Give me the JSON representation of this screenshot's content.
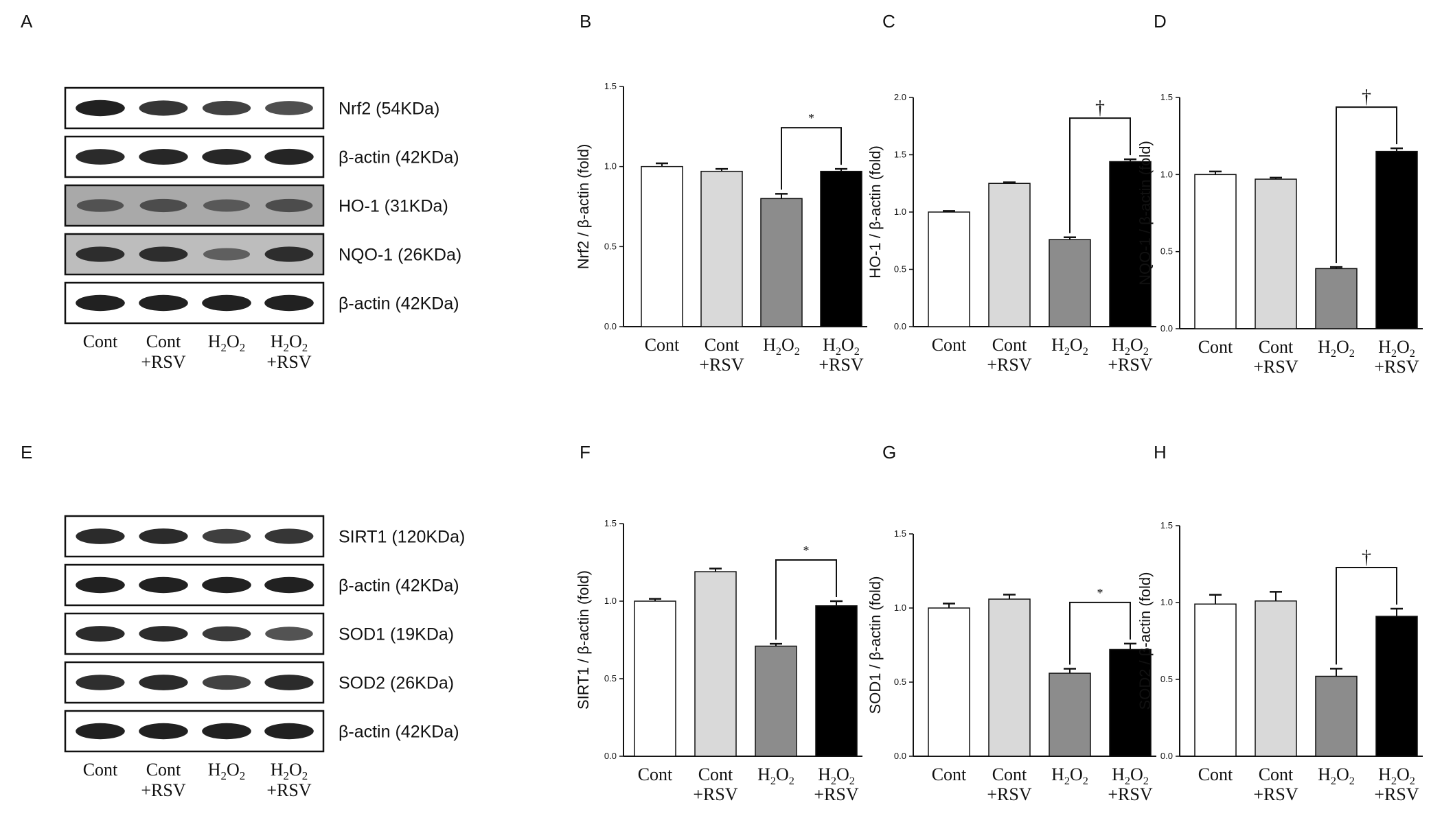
{
  "panels": {
    "A": "A",
    "B": "B",
    "C": "C",
    "D": "D",
    "E": "E",
    "F": "F",
    "G": "G",
    "H": "H"
  },
  "conditions": [
    {
      "main": "Cont",
      "line2": ""
    },
    {
      "main": "Cont",
      "line2": "+RSV"
    },
    {
      "main": "H",
      "sub": "2",
      "main2": "O",
      "sub2": "2",
      "line2": ""
    },
    {
      "main": "H",
      "sub": "2",
      "main2": "O",
      "sub2": "2",
      "line2": "+RSV"
    }
  ],
  "blots_top": [
    {
      "label": "Nrf2 (54KDa)",
      "intensity": [
        0.95,
        0.85,
        0.78,
        0.72
      ],
      "background": "#ffffff"
    },
    {
      "label": "β-actin (42KDa)",
      "intensity": [
        0.9,
        0.92,
        0.92,
        0.93
      ],
      "background": "#ffffff"
    },
    {
      "label": "HO-1 (31KDa)",
      "intensity": [
        0.55,
        0.6,
        0.5,
        0.6
      ],
      "background": "#a9a9a9"
    },
    {
      "label": "NQO-1 (26KDa)",
      "intensity": [
        0.85,
        0.85,
        0.5,
        0.85
      ],
      "background": "#bdbdbd"
    },
    {
      "label": "β-actin (42KDa)",
      "intensity": [
        0.95,
        0.95,
        0.95,
        0.95
      ],
      "background": "#ffffff"
    }
  ],
  "blots_bottom": [
    {
      "label": "SIRT1 (120KDa)",
      "intensity": [
        0.9,
        0.9,
        0.8,
        0.85
      ],
      "background": "#ffffff"
    },
    {
      "label": "β-actin (42KDa)",
      "intensity": [
        0.95,
        0.95,
        0.95,
        0.95
      ],
      "background": "#ffffff"
    },
    {
      "label": "SOD1 (19KDa)",
      "intensity": [
        0.9,
        0.9,
        0.82,
        0.7
      ],
      "background": "#ffffff"
    },
    {
      "label": "SOD2 (26KDa)",
      "intensity": [
        0.88,
        0.9,
        0.78,
        0.9
      ],
      "background": "#ffffff"
    },
    {
      "label": "β-actin (42KDa)",
      "intensity": [
        0.95,
        0.95,
        0.95,
        0.95
      ],
      "background": "#ffffff"
    }
  ],
  "bar_colors": [
    "#ffffff",
    "#d9d9d9",
    "#8c8c8c",
    "#000000"
  ],
  "chart_data": [
    {
      "panel": "B",
      "type": "bar",
      "ylabel": "Nrf2 / β-actin (fold)",
      "ylim": [
        0,
        1.5
      ],
      "yticks": [
        0.0,
        0.5,
        1.0,
        1.5
      ],
      "ytick_labels": [
        "0.0",
        "0.5",
        "1.0",
        "1.5"
      ],
      "categories": [
        "Cont",
        "Cont +RSV",
        "H2O2",
        "H2O2 +RSV"
      ],
      "values": [
        1.0,
        0.97,
        0.8,
        0.97
      ],
      "errors": [
        0.02,
        0.015,
        0.03,
        0.015
      ],
      "significance": {
        "from": 2,
        "to": 3,
        "mark": "*"
      }
    },
    {
      "panel": "C",
      "type": "bar",
      "ylabel": "HO-1 / β-actin (fold)",
      "ylim": [
        0,
        2.0
      ],
      "yticks": [
        0.0,
        0.5,
        1.0,
        1.5,
        2.0
      ],
      "ytick_labels": [
        "0.0",
        "0.5",
        "1.0",
        "1.5",
        "2.0"
      ],
      "categories": [
        "Cont",
        "Cont +RSV",
        "H2O2",
        "H2O2 +RSV"
      ],
      "values": [
        1.0,
        1.25,
        0.76,
        1.44
      ],
      "errors": [
        0.01,
        0.01,
        0.02,
        0.02
      ],
      "significance": {
        "from": 2,
        "to": 3,
        "mark": "†"
      }
    },
    {
      "panel": "D",
      "type": "bar",
      "ylabel": "NQO-1 / β-actin (fold)",
      "ylim": [
        0,
        1.5
      ],
      "yticks": [
        0.0,
        0.5,
        1.0,
        1.5
      ],
      "ytick_labels": [
        "0.0",
        "0.5",
        "1.0",
        "1.5"
      ],
      "categories": [
        "Cont",
        "Cont +RSV",
        "H2O2",
        "H2O2 +RSV"
      ],
      "values": [
        1.0,
        0.97,
        0.39,
        1.15
      ],
      "errors": [
        0.02,
        0.01,
        0.01,
        0.02
      ],
      "significance": {
        "from": 2,
        "to": 3,
        "mark": "†"
      }
    },
    {
      "panel": "F",
      "type": "bar",
      "ylabel": "SIRT1 / β-actin (fold)",
      "ylim": [
        0,
        1.5
      ],
      "yticks": [
        0.0,
        0.5,
        1.0,
        1.5
      ],
      "ytick_labels": [
        "0.0",
        "0.5",
        "1.0",
        "1.5"
      ],
      "categories": [
        "Cont",
        "Cont +RSV",
        "H2O2",
        "H2O2 +RSV"
      ],
      "values": [
        1.0,
        1.19,
        0.71,
        0.97
      ],
      "errors": [
        0.015,
        0.02,
        0.015,
        0.03
      ],
      "significance": {
        "from": 2,
        "to": 3,
        "mark": "*"
      }
    },
    {
      "panel": "G",
      "type": "bar",
      "ylabel": "SOD1 / β-actin (fold)",
      "ylim": [
        0,
        1.5
      ],
      "yticks": [
        0.0,
        0.5,
        1.0,
        1.5
      ],
      "ytick_labels": [
        "0.0",
        "0.5",
        "1.0",
        "1.5"
      ],
      "categories": [
        "Cont",
        "Cont +RSV",
        "H2O2",
        "H2O2 +RSV"
      ],
      "values": [
        1.0,
        1.06,
        0.56,
        0.72
      ],
      "errors": [
        0.03,
        0.03,
        0.03,
        0.04
      ],
      "significance": {
        "from": 2,
        "to": 3,
        "mark": "*"
      }
    },
    {
      "panel": "H",
      "type": "bar",
      "ylabel": "SOD2 / β-actin (fold)",
      "ylim": [
        0,
        1.5
      ],
      "yticks": [
        0.0,
        0.5,
        1.0,
        1.5
      ],
      "ytick_labels": [
        "0.0",
        "0.5",
        "1.0",
        "1.5"
      ],
      "categories": [
        "Cont",
        "Cont +RSV",
        "H2O2",
        "H2O2 +RSV"
      ],
      "values": [
        0.99,
        1.01,
        0.52,
        0.91
      ],
      "errors": [
        0.06,
        0.06,
        0.05,
        0.05
      ],
      "significance": {
        "from": 2,
        "to": 3,
        "mark": "†"
      }
    }
  ]
}
